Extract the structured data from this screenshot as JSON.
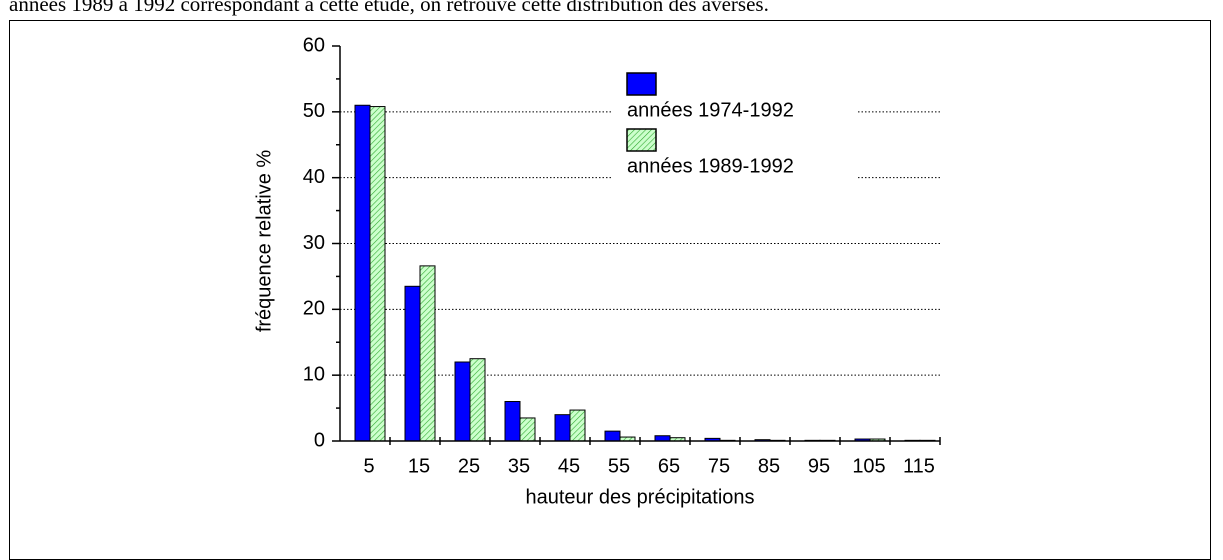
{
  "text": "années 1989 à 1992 correspondant à cette étude, on retrouve cette distribution des averses.",
  "chart_data": {
    "type": "bar",
    "ylabel": "fréquence relative %",
    "xlabel": "hauteur des précipitations",
    "categories": [
      "5",
      "15",
      "25",
      "35",
      "45",
      "55",
      "65",
      "75",
      "85",
      "95",
      "105",
      "115"
    ],
    "series": [
      {
        "name": "années 1974-1992",
        "color": "#0000ff",
        "values": [
          51,
          23.5,
          12,
          6,
          4,
          1.5,
          0.8,
          0.4,
          0.2,
          0.1,
          0.3,
          0.1
        ]
      },
      {
        "name": "années 1989-1992",
        "color": "#ccffcc",
        "values": [
          50.8,
          26.6,
          12.5,
          3.5,
          4.7,
          0.6,
          0.5,
          0.1,
          0.1,
          0.1,
          0.3,
          0.1
        ]
      }
    ],
    "ylim": [
      0,
      60
    ],
    "yticks": [
      0,
      10,
      20,
      30,
      40,
      50,
      60
    ],
    "grid": true
  }
}
